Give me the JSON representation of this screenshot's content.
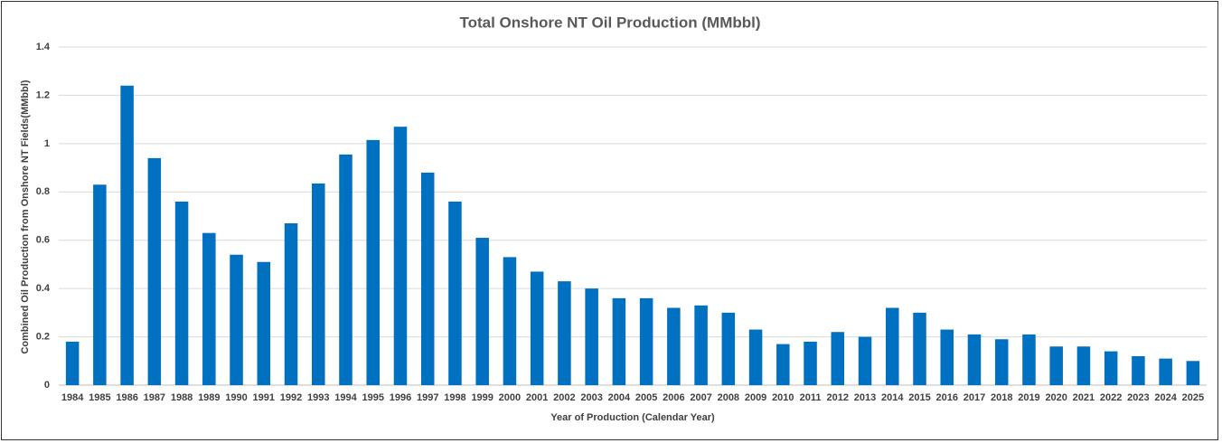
{
  "chart_data": {
    "type": "bar",
    "title": "Total Onshore NT Oil Production (MMbbl)",
    "x_label": "Year of Production (Calendar Year)",
    "y_label": "Combined Oil Production from Onshore NT Fields(MMbbl)",
    "categories": [
      "1984",
      "1985",
      "1986",
      "1987",
      "1988",
      "1989",
      "1990",
      "1991",
      "1992",
      "1993",
      "1994",
      "1995",
      "1996",
      "1997",
      "1998",
      "1999",
      "2000",
      "2001",
      "2002",
      "2003",
      "2004",
      "2005",
      "2006",
      "2007",
      "2008",
      "2009",
      "2010",
      "2011",
      "2012",
      "2013",
      "2014",
      "2015",
      "2016",
      "2017",
      "2018",
      "2019",
      "2020",
      "2021",
      "2022",
      "2023",
      "2024",
      "2025"
    ],
    "values": [
      0.18,
      0.83,
      1.24,
      0.94,
      0.76,
      0.63,
      0.54,
      0.51,
      0.67,
      0.835,
      0.955,
      1.015,
      1.07,
      0.88,
      0.76,
      0.61,
      0.53,
      0.47,
      0.43,
      0.4,
      0.36,
      0.36,
      0.32,
      0.33,
      0.3,
      0.23,
      0.17,
      0.18,
      0.22,
      0.2,
      0.32,
      0.3,
      0.23,
      0.21,
      0.19,
      0.21,
      0.16,
      0.16,
      0.14,
      0.12,
      0.11,
      0.1
    ],
    "color": "#0070c0",
    "ylim": [
      0,
      1.4
    ],
    "yticks": [
      0,
      0.2,
      0.4,
      0.6,
      0.8,
      1,
      1.2,
      1.4
    ],
    "grid": true
  }
}
